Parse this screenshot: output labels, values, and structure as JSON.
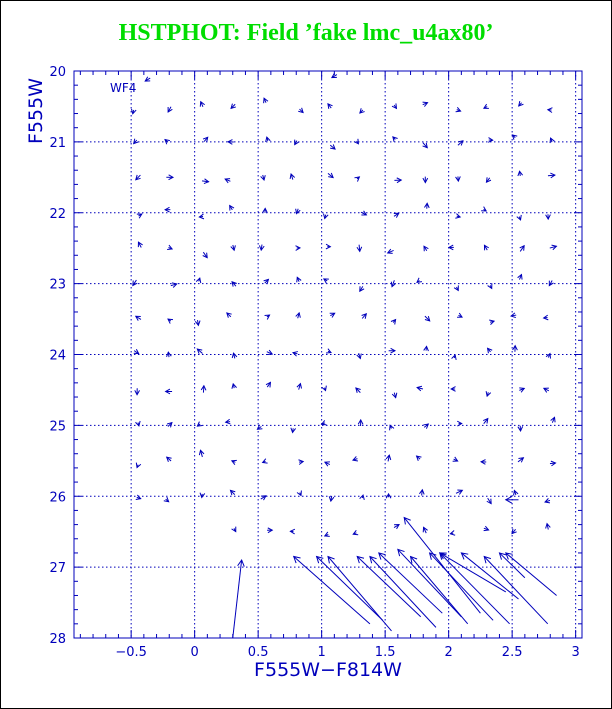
{
  "chart_data": {
    "type": "vector-field",
    "title": "HSTPHOT: Field ’fake lmc_u4ax80’",
    "panel_label": "WF4",
    "xlabel": "F555W−F814W",
    "ylabel": "F555W",
    "xlim": [
      -0.95,
      3.05
    ],
    "ylim": [
      28,
      20
    ],
    "x_ticks": [
      -0.5,
      0,
      0.5,
      1,
      1.5,
      2,
      2.5,
      3
    ],
    "x_tick_labels": [
      "−0.5",
      "0",
      "0.5",
      "1",
      "1.5",
      "2",
      "2.5",
      "3"
    ],
    "y_ticks": [
      20,
      21,
      22,
      23,
      24,
      25,
      26,
      27,
      28
    ],
    "y_tick_labels": [
      "20",
      "21",
      "22",
      "23",
      "24",
      "25",
      "26",
      "27",
      "28"
    ],
    "grid": true,
    "long_vectors": [
      {
        "x": 0.3,
        "y": 28.0,
        "dx": 0.07,
        "dy": -1.1
      },
      {
        "x": 1.38,
        "y": 27.8,
        "dx": -0.6,
        "dy": -0.95
      },
      {
        "x": 1.48,
        "y": 27.75,
        "dx": -0.52,
        "dy": -0.9
      },
      {
        "x": 1.55,
        "y": 27.9,
        "dx": -0.5,
        "dy": -1.05
      },
      {
        "x": 1.78,
        "y": 27.7,
        "dx": -0.5,
        "dy": -0.85
      },
      {
        "x": 1.9,
        "y": 27.85,
        "dx": -0.52,
        "dy": -1.0
      },
      {
        "x": 1.95,
        "y": 27.65,
        "dx": -0.5,
        "dy": -0.85
      },
      {
        "x": 2.1,
        "y": 27.7,
        "dx": -0.5,
        "dy": -0.95
      },
      {
        "x": 2.15,
        "y": 27.8,
        "dx": -0.45,
        "dy": -0.95
      },
      {
        "x": 2.25,
        "y": 27.65,
        "dx": -0.6,
        "dy": -1.35
      },
      {
        "x": 2.35,
        "y": 27.75,
        "dx": -0.5,
        "dy": -0.95
      },
      {
        "x": 2.48,
        "y": 27.8,
        "dx": -0.55,
        "dy": -1.0
      },
      {
        "x": 2.45,
        "y": 27.35,
        "dx": -0.52,
        "dy": -0.55
      },
      {
        "x": 2.55,
        "y": 27.45,
        "dx": -0.45,
        "dy": -0.65
      },
      {
        "x": 2.78,
        "y": 27.8,
        "dx": -0.5,
        "dy": -0.95
      },
      {
        "x": 2.85,
        "y": 27.4,
        "dx": -0.4,
        "dy": -0.6
      },
      {
        "x": 2.6,
        "y": 27.15,
        "dx": -0.2,
        "dy": -0.35
      },
      {
        "x": 2.55,
        "y": 26.05,
        "dx": -0.1,
        "dy": 0
      }
    ]
  },
  "colors": {
    "axis": "#0000bb",
    "vector": "#0000bb",
    "title": "#00dd00",
    "background": "#ffffff"
  }
}
